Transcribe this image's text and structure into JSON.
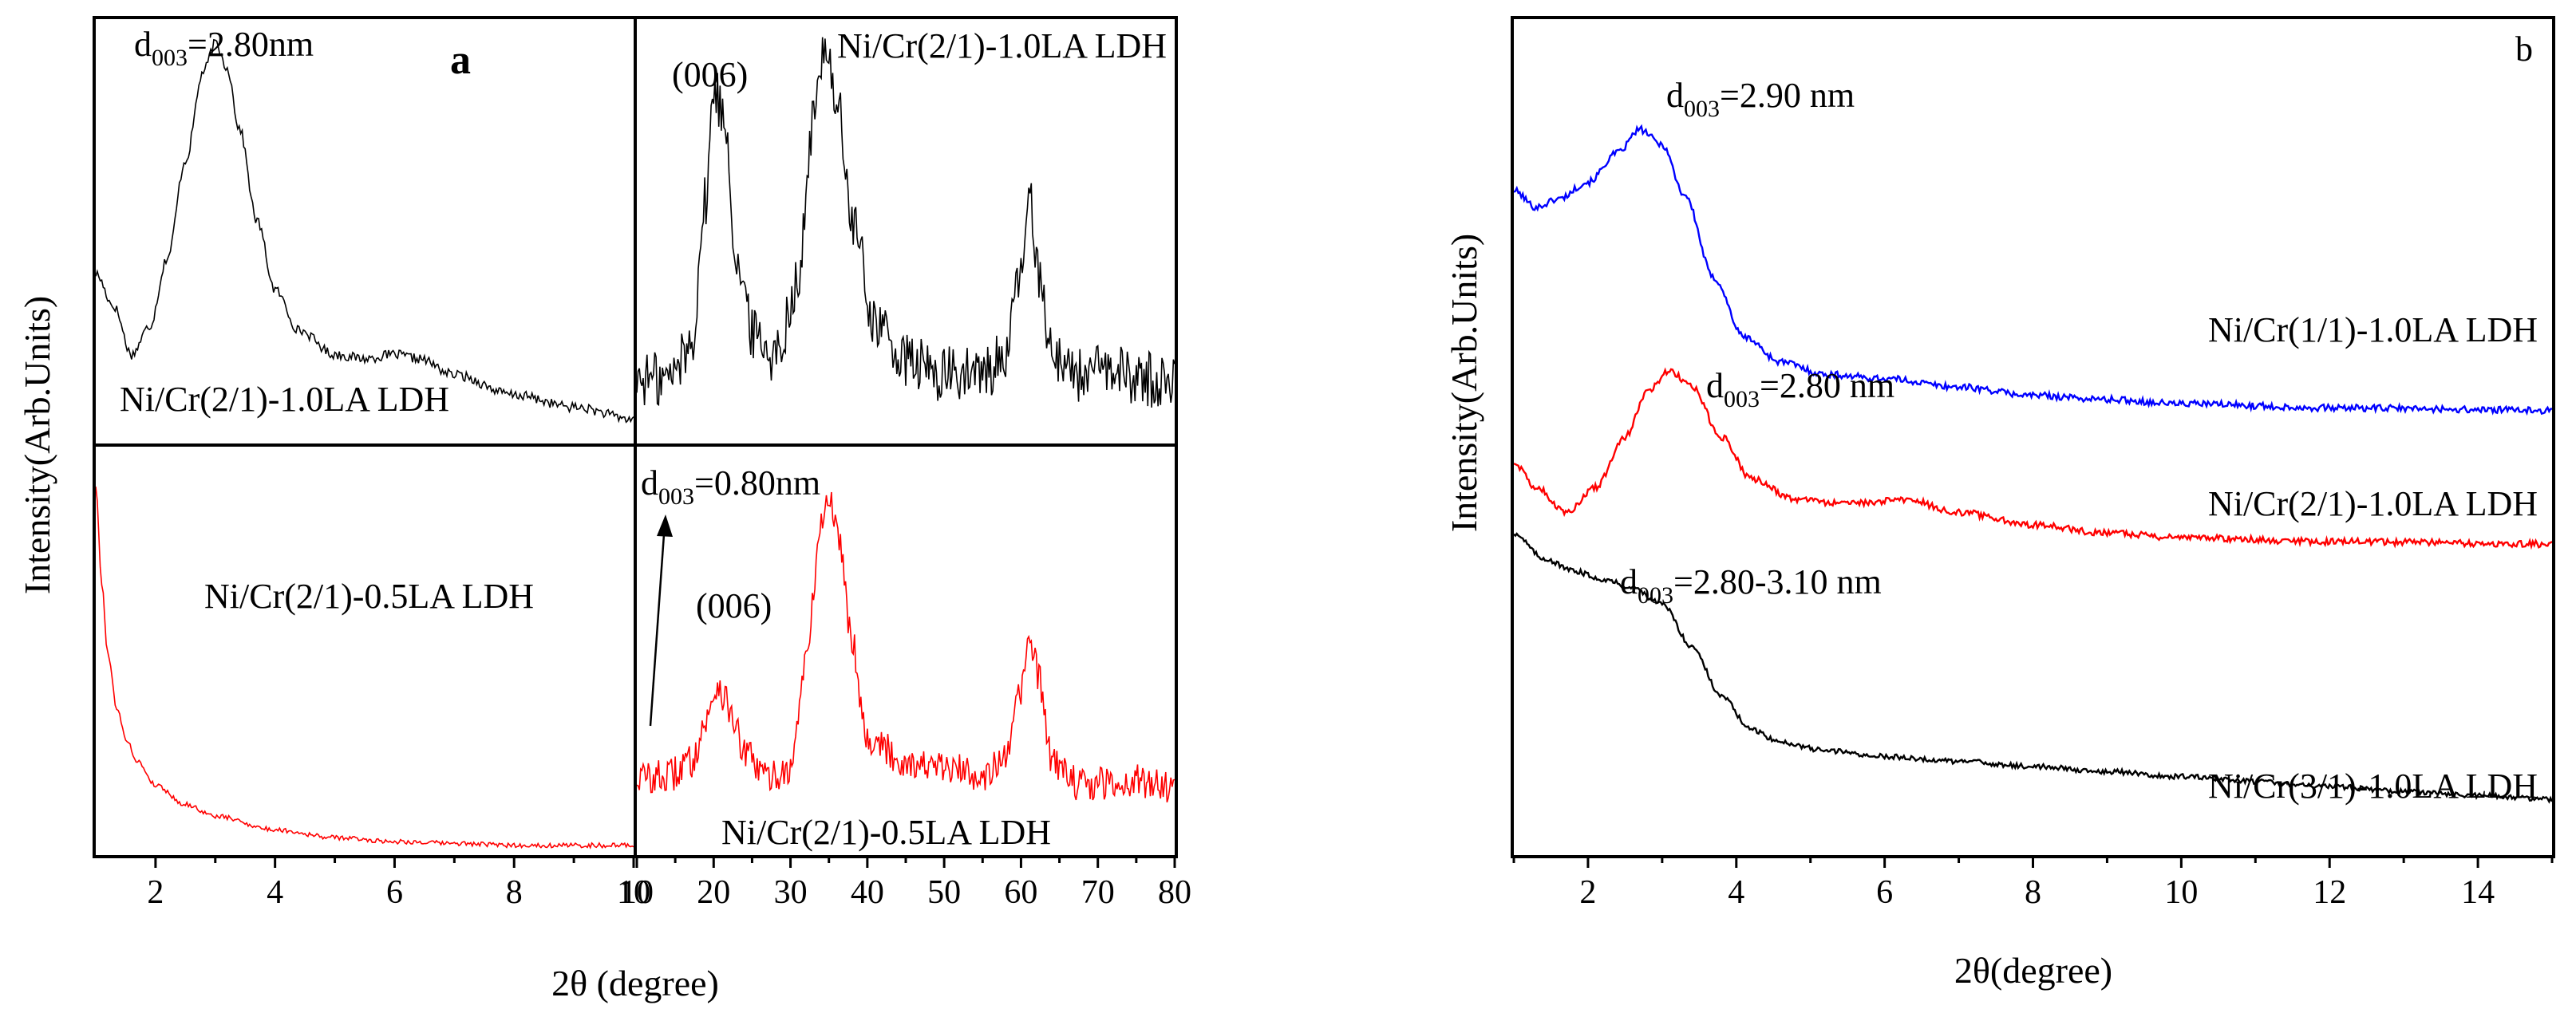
{
  "chart_data": [
    {
      "panel": "a",
      "type": "line",
      "label": "a",
      "ylabel": "Intensity(Arb.Units)",
      "xlabel": "2θ (degree)",
      "quadrants": [
        {
          "id": "top-left",
          "xlim": [
            1,
            10
          ],
          "xticks": [],
          "color": "#000000",
          "series_label": "Ni/Cr(2/1)-1.0LA LDH",
          "annotation": {
            "pre": "d",
            "sub": "003",
            "post": "=2.80nm"
          },
          "points": [
            [
              1,
              0.42
            ],
            [
              1.3,
              0.34
            ],
            [
              1.6,
              0.22
            ],
            [
              1.9,
              0.29
            ],
            [
              2.2,
              0.46
            ],
            [
              2.5,
              0.7
            ],
            [
              2.8,
              0.92
            ],
            [
              3.0,
              0.99
            ],
            [
              3.2,
              0.93
            ],
            [
              3.4,
              0.78
            ],
            [
              3.7,
              0.55
            ],
            [
              4.0,
              0.38
            ],
            [
              4.4,
              0.28
            ],
            [
              5.0,
              0.22
            ],
            [
              5.5,
              0.21
            ],
            [
              6.0,
              0.22
            ],
            [
              6.4,
              0.21
            ],
            [
              7.0,
              0.17
            ],
            [
              8.0,
              0.12
            ],
            [
              9.0,
              0.09
            ],
            [
              10,
              0.06
            ]
          ],
          "noise": 0.012
        },
        {
          "id": "top-right",
          "xlim": [
            10,
            80
          ],
          "xticks": [],
          "color": "#000000",
          "series_label": "Ni/Cr(2/1)-1.0LA LDH",
          "peak_label": "(006)",
          "points": [
            [
              10,
              0.16
            ],
            [
              14,
              0.16
            ],
            [
              17,
              0.24
            ],
            [
              19,
              0.6
            ],
            [
              20,
              0.88
            ],
            [
              21.5,
              0.8
            ],
            [
              23,
              0.45
            ],
            [
              25,
              0.28
            ],
            [
              28,
              0.22
            ],
            [
              31,
              0.4
            ],
            [
              33,
              0.8
            ],
            [
              34.5,
              1.0
            ],
            [
              36,
              0.85
            ],
            [
              38,
              0.55
            ],
            [
              41,
              0.3
            ],
            [
              45,
              0.2
            ],
            [
              50,
              0.17
            ],
            [
              55,
              0.17
            ],
            [
              58,
              0.22
            ],
            [
              60,
              0.42
            ],
            [
              61,
              0.6
            ],
            [
              62.5,
              0.42
            ],
            [
              64,
              0.22
            ],
            [
              68,
              0.17
            ],
            [
              72,
              0.18
            ],
            [
              76,
              0.16
            ],
            [
              80,
              0.15
            ]
          ],
          "noise": 0.07
        },
        {
          "id": "bottom-left",
          "xlim": [
            1,
            10
          ],
          "xticks": [
            2,
            4,
            6,
            8,
            10
          ],
          "color": "#ff0000",
          "series_label": "Ni/Cr(2/1)-0.5LA LDH",
          "points": [
            [
              1,
              0.95
            ],
            [
              1.1,
              0.7
            ],
            [
              1.2,
              0.52
            ],
            [
              1.35,
              0.38
            ],
            [
              1.5,
              0.3
            ],
            [
              1.7,
              0.24
            ],
            [
              2.0,
              0.18
            ],
            [
              2.5,
              0.13
            ],
            [
              3.0,
              0.1
            ],
            [
              4.0,
              0.065
            ],
            [
              5.0,
              0.045
            ],
            [
              6.0,
              0.035
            ],
            [
              7.0,
              0.03
            ],
            [
              8.0,
              0.025
            ],
            [
              9.0,
              0.025
            ],
            [
              10,
              0.025
            ]
          ],
          "noise": 0.006
        },
        {
          "id": "bottom-right",
          "xlim": [
            10,
            80
          ],
          "xticks": [
            10,
            20,
            30,
            40,
            50,
            60,
            70,
            80
          ],
          "color": "#ff0000",
          "series_label": "Ni/Cr(2/1)-0.5LA LDH",
          "peak_label": "(006)",
          "annotation": {
            "pre": "d",
            "sub": "003",
            "post": "=0.80nm"
          },
          "points": [
            [
              10,
              0.2
            ],
            [
              14,
              0.2
            ],
            [
              17,
              0.24
            ],
            [
              19,
              0.34
            ],
            [
              20.5,
              0.44
            ],
            [
              22,
              0.38
            ],
            [
              24,
              0.26
            ],
            [
              27,
              0.2
            ],
            [
              30,
              0.22
            ],
            [
              32,
              0.5
            ],
            [
              34,
              0.85
            ],
            [
              35,
              0.92
            ],
            [
              36.5,
              0.8
            ],
            [
              38,
              0.55
            ],
            [
              40,
              0.3
            ],
            [
              45,
              0.24
            ],
            [
              50,
              0.22
            ],
            [
              55,
              0.21
            ],
            [
              58,
              0.24
            ],
            [
              60,
              0.42
            ],
            [
              61,
              0.56
            ],
            [
              62.5,
              0.44
            ],
            [
              64,
              0.24
            ],
            [
              68,
              0.18
            ],
            [
              74,
              0.19
            ],
            [
              80,
              0.18
            ]
          ],
          "noise": 0.045
        }
      ]
    },
    {
      "panel": "b",
      "type": "line",
      "label": "b",
      "ylabel": "Intensity(Arb.Units)",
      "xlabel": "2θ(degree)",
      "xlim": [
        1,
        15
      ],
      "xticks": [
        2,
        4,
        6,
        8,
        10,
        12,
        14
      ],
      "series": [
        {
          "name": "Ni/Cr(1/1)-1.0LA LDH",
          "color": "#0000ff",
          "annotation": {
            "pre": "d",
            "sub": "003",
            "post": "=2.90 nm"
          },
          "points": [
            [
              1,
              0.795
            ],
            [
              1.3,
              0.775
            ],
            [
              1.6,
              0.785
            ],
            [
              2.0,
              0.805
            ],
            [
              2.4,
              0.84
            ],
            [
              2.7,
              0.868
            ],
            [
              3.0,
              0.85
            ],
            [
              3.3,
              0.79
            ],
            [
              3.7,
              0.69
            ],
            [
              4.1,
              0.62
            ],
            [
              4.6,
              0.59
            ],
            [
              5.2,
              0.575
            ],
            [
              6,
              0.57
            ],
            [
              7,
              0.56
            ],
            [
              8,
              0.55
            ],
            [
              9,
              0.545
            ],
            [
              10,
              0.54
            ],
            [
              12,
              0.535
            ],
            [
              15,
              0.532
            ]
          ],
          "noise": 0.004
        },
        {
          "name": "Ni/Cr(2/1)-1.0LA LDH",
          "color": "#ff0000",
          "annotation": {
            "pre": "d",
            "sub": "003",
            "post": "=2.80 nm"
          },
          "points": [
            [
              1,
              0.47
            ],
            [
              1.3,
              0.44
            ],
            [
              1.7,
              0.41
            ],
            [
              2.1,
              0.44
            ],
            [
              2.5,
              0.5
            ],
            [
              2.8,
              0.555
            ],
            [
              3.1,
              0.58
            ],
            [
              3.4,
              0.56
            ],
            [
              3.8,
              0.5
            ],
            [
              4.2,
              0.45
            ],
            [
              4.8,
              0.425
            ],
            [
              5.5,
              0.42
            ],
            [
              6.3,
              0.425
            ],
            [
              7,
              0.41
            ],
            [
              8,
              0.395
            ],
            [
              9,
              0.385
            ],
            [
              10,
              0.38
            ],
            [
              12,
              0.375
            ],
            [
              15,
              0.372
            ]
          ],
          "noise": 0.004
        },
        {
          "name": "Ni/Cr(3/1)-1.0LA LDH",
          "color": "#000000",
          "annotation": {
            "pre": "d",
            "sub": "003",
            "post": "=2.80-3.10 nm"
          },
          "points": [
            [
              1,
              0.385
            ],
            [
              1.4,
              0.355
            ],
            [
              1.8,
              0.34
            ],
            [
              2.2,
              0.33
            ],
            [
              2.6,
              0.32
            ],
            [
              3.0,
              0.3
            ],
            [
              3.4,
              0.25
            ],
            [
              3.8,
              0.19
            ],
            [
              4.2,
              0.15
            ],
            [
              4.6,
              0.135
            ],
            [
              5.2,
              0.125
            ],
            [
              6,
              0.118
            ],
            [
              7,
              0.112
            ],
            [
              8,
              0.106
            ],
            [
              9,
              0.1
            ],
            [
              10,
              0.094
            ],
            [
              11,
              0.088
            ],
            [
              12,
              0.082
            ],
            [
              13,
              0.076
            ],
            [
              14,
              0.071
            ],
            [
              15,
              0.067
            ]
          ],
          "noise": 0.003
        }
      ]
    }
  ]
}
